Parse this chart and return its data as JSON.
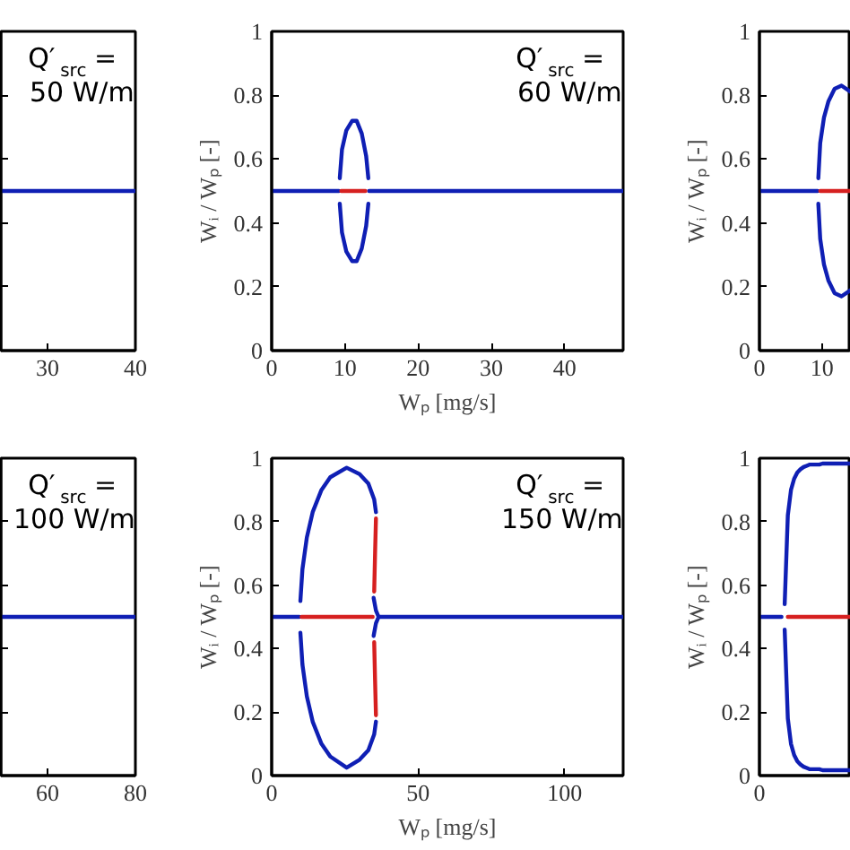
{
  "chart_data": [
    {
      "type": "line",
      "xlim": [
        24.7,
        40
      ],
      "xticks": [
        30,
        40
      ],
      "ylim": [
        0,
        1
      ],
      "yticks": [
        0,
        0.2,
        0.4,
        0.6,
        0.8,
        1
      ],
      "tick_labels": "x",
      "grid": false,
      "annotations": [
        "Q′$_{src}$ =\n50 W/m"
      ],
      "series": [
        {
          "color": "#0f1fb4",
          "x": [
            24.7,
            40
          ],
          "values": [
            0.5,
            0.5
          ]
        }
      ]
    },
    {
      "type": "line",
      "xlim": [
        0,
        48
      ],
      "xticks": [
        0,
        10,
        20,
        30,
        40
      ],
      "ylim": [
        0,
        1
      ],
      "yticks": [
        0,
        0.2,
        0.4,
        0.6,
        0.8,
        1
      ],
      "xlabel": "Wₚ [mg/s]",
      "ylabel": "Wᵢ / Wₚ [-]",
      "grid": false,
      "annotations": [
        "Q′$_{src}$ =\n60 W/m"
      ],
      "series": [
        {
          "color": "#0f1fb4",
          "x": [
            0,
            9.2
          ],
          "values": [
            0.5,
            0.5
          ]
        },
        {
          "color": "#0f1fb4",
          "x": [
            13.3,
            48
          ],
          "values": [
            0.5,
            0.5
          ]
        },
        {
          "color": "#d62020",
          "x": [
            9.5,
            12.8
          ],
          "values": [
            0.5,
            0.5
          ]
        },
        {
          "color": "#0f1fb4",
          "x": [
            9.3,
            9.6,
            10.2,
            11.0,
            11.6,
            12.3,
            12.9,
            13.2
          ],
          "values": [
            0.54,
            0.63,
            0.69,
            0.72,
            0.72,
            0.68,
            0.61,
            0.54
          ]
        },
        {
          "color": "#0f1fb4",
          "x": [
            9.3,
            9.6,
            10.2,
            11.0,
            11.6,
            12.3,
            12.9,
            13.2
          ],
          "values": [
            0.46,
            0.37,
            0.31,
            0.28,
            0.28,
            0.32,
            0.39,
            0.46
          ]
        }
      ]
    },
    {
      "type": "line",
      "xlim": [
        0,
        14.6
      ],
      "xticks": [
        0,
        10
      ],
      "ylim": [
        0,
        1
      ],
      "yticks": [
        0,
        0.2,
        0.4,
        0.6,
        0.8,
        1
      ],
      "ylabel": "Wᵢ / Wₚ [-]",
      "grid": false,
      "series": [
        {
          "color": "#0f1fb4",
          "x": [
            0,
            9.3
          ],
          "values": [
            0.5,
            0.5
          ]
        },
        {
          "color": "#d62020",
          "x": [
            9.7,
            14.6
          ],
          "values": [
            0.5,
            0.5
          ]
        },
        {
          "color": "#0f1fb4",
          "x": [
            9.4,
            9.7,
            10.3,
            11.0,
            12.0,
            13.1,
            14.6
          ],
          "values": [
            0.54,
            0.65,
            0.73,
            0.78,
            0.82,
            0.83,
            0.81
          ]
        },
        {
          "color": "#0f1fb4",
          "x": [
            9.4,
            9.7,
            10.3,
            11.0,
            12.0,
            13.1,
            14.6
          ],
          "values": [
            0.46,
            0.35,
            0.27,
            0.22,
            0.18,
            0.17,
            0.19
          ]
        }
      ]
    },
    {
      "type": "line",
      "xlim": [
        49.4,
        80
      ],
      "xticks": [
        60,
        80
      ],
      "ylim": [
        0,
        1
      ],
      "yticks": [
        0,
        0.2,
        0.4,
        0.6,
        0.8,
        1
      ],
      "tick_labels": "x",
      "grid": false,
      "annotations": [
        "Q′$_{src}$ =\n100 W/m"
      ],
      "series": [
        {
          "color": "#0f1fb4",
          "x": [
            49.4,
            80
          ],
          "values": [
            0.5,
            0.5
          ]
        }
      ]
    },
    {
      "type": "line",
      "xlim": [
        0,
        120
      ],
      "xticks": [
        0,
        50,
        100
      ],
      "ylim": [
        0,
        1
      ],
      "yticks": [
        0,
        0.2,
        0.4,
        0.6,
        0.8,
        1
      ],
      "xlabel": "Wₚ [mg/s]",
      "ylabel": "Wᵢ / Wₚ [-]",
      "grid": false,
      "annotations": [
        "Q′$_{src}$ =\n150 W/m"
      ],
      "series": [
        {
          "color": "#0f1fb4",
          "x": [
            0,
            9.5
          ],
          "values": [
            0.5,
            0.5
          ]
        },
        {
          "color": "#d62020",
          "x": [
            10.2,
            34.5
          ],
          "values": [
            0.5,
            0.5
          ]
        },
        {
          "color": "#0f1fb4",
          "x": [
            36.5,
            120
          ],
          "values": [
            0.5,
            0.5
          ]
        },
        {
          "color": "#0f1fb4",
          "x": [
            34.8,
            35.6,
            36.5,
            35.6,
            34.8
          ],
          "values": [
            0.44,
            0.48,
            0.5,
            0.52,
            0.56
          ]
        },
        {
          "color": "#0f1fb4",
          "x": [
            35.6,
            35,
            33,
            30,
            25.6,
            20,
            17,
            14,
            12,
            10.5,
            9.8,
            null,
            9.8,
            10.5,
            12,
            14,
            17,
            20,
            25.6,
            30,
            33,
            35,
            35.6
          ],
          "values": [
            0.83,
            0.87,
            0.92,
            0.95,
            0.97,
            0.94,
            0.9,
            0.83,
            0.75,
            0.65,
            0.55,
            null,
            0.45,
            0.35,
            0.25,
            0.17,
            0.1,
            0.06,
            0.025,
            0.05,
            0.08,
            0.13,
            0.17
          ]
        },
        {
          "color": "#d62020",
          "x": [
            35.6,
            35.3,
            35.0
          ],
          "values": [
            0.81,
            0.7,
            0.58
          ]
        },
        {
          "color": "#d62020",
          "x": [
            35.6,
            35.3,
            35.0
          ],
          "values": [
            0.19,
            0.3,
            0.42
          ]
        }
      ]
    },
    {
      "type": "line",
      "categories": [
        null,
        null,
        null,
        null,
        null,
        null,
        null,
        null,
        null,
        null,
        null,
        null,
        null,
        null,
        null,
        null,
        null,
        null,
        null,
        null,
        null,
        null,
        null,
        null,
        null,
        null,
        null,
        null,
        null,
        null
      ],
      "ylim": [
        0,
        1
      ],
      "yticks": [
        0,
        0.2,
        0.4,
        0.6,
        0.8,
        1
      ],
      "ylabel": "Wᵢ / Wₚ [-]",
      "grid": false,
      "annotations": [
        {
          "text": "0"
        }
      ],
      "series": [
        {
          "color": "#0f1fb4",
          "values": [
            0.5,
            0.5,
            0.5,
            0.5,
            0.5,
            0.5,
            0.5,
            0.5,
            null,
            null,
            null,
            null,
            null,
            null,
            null,
            null,
            null,
            null,
            null,
            null,
            null,
            null,
            null,
            null,
            null,
            null,
            null,
            null,
            null,
            null
          ]
        },
        {
          "color": "#d62020",
          "values": [
            null,
            null,
            null,
            null,
            null,
            null,
            null,
            null,
            null,
            0.5,
            0.5,
            0.5,
            0.5,
            0.5,
            0.5,
            0.5,
            0.5,
            0.5,
            0.5,
            0.5,
            0.5,
            0.5,
            0.5,
            0.5,
            0.5,
            0.5,
            0.5,
            0.5,
            0.5,
            0.5
          ]
        },
        {
          "color": "#0f1fb4",
          "values": [
            null,
            null,
            null,
            null,
            null,
            null,
            null,
            null,
            0.54,
            0.82,
            0.9,
            0.935,
            0.955,
            0.965,
            0.972,
            0.976,
            0.98,
            0.98,
            0.98,
            0.98,
            0.983,
            0.983,
            0.983,
            0.983,
            0.983,
            0.983,
            0.983,
            0.983,
            0.983,
            0.983
          ]
        },
        {
          "color": "#0f1fb4",
          "values": [
            null,
            null,
            null,
            null,
            null,
            null,
            null,
            null,
            0.46,
            0.18,
            0.1,
            0.065,
            0.045,
            0.035,
            0.028,
            0.024,
            0.02,
            0.02,
            0.02,
            0.02,
            0.017,
            0.017,
            0.017,
            0.017,
            0.017,
            0.017,
            0.017,
            0.017,
            0.017,
            0.017
          ]
        }
      ]
    }
  ]
}
